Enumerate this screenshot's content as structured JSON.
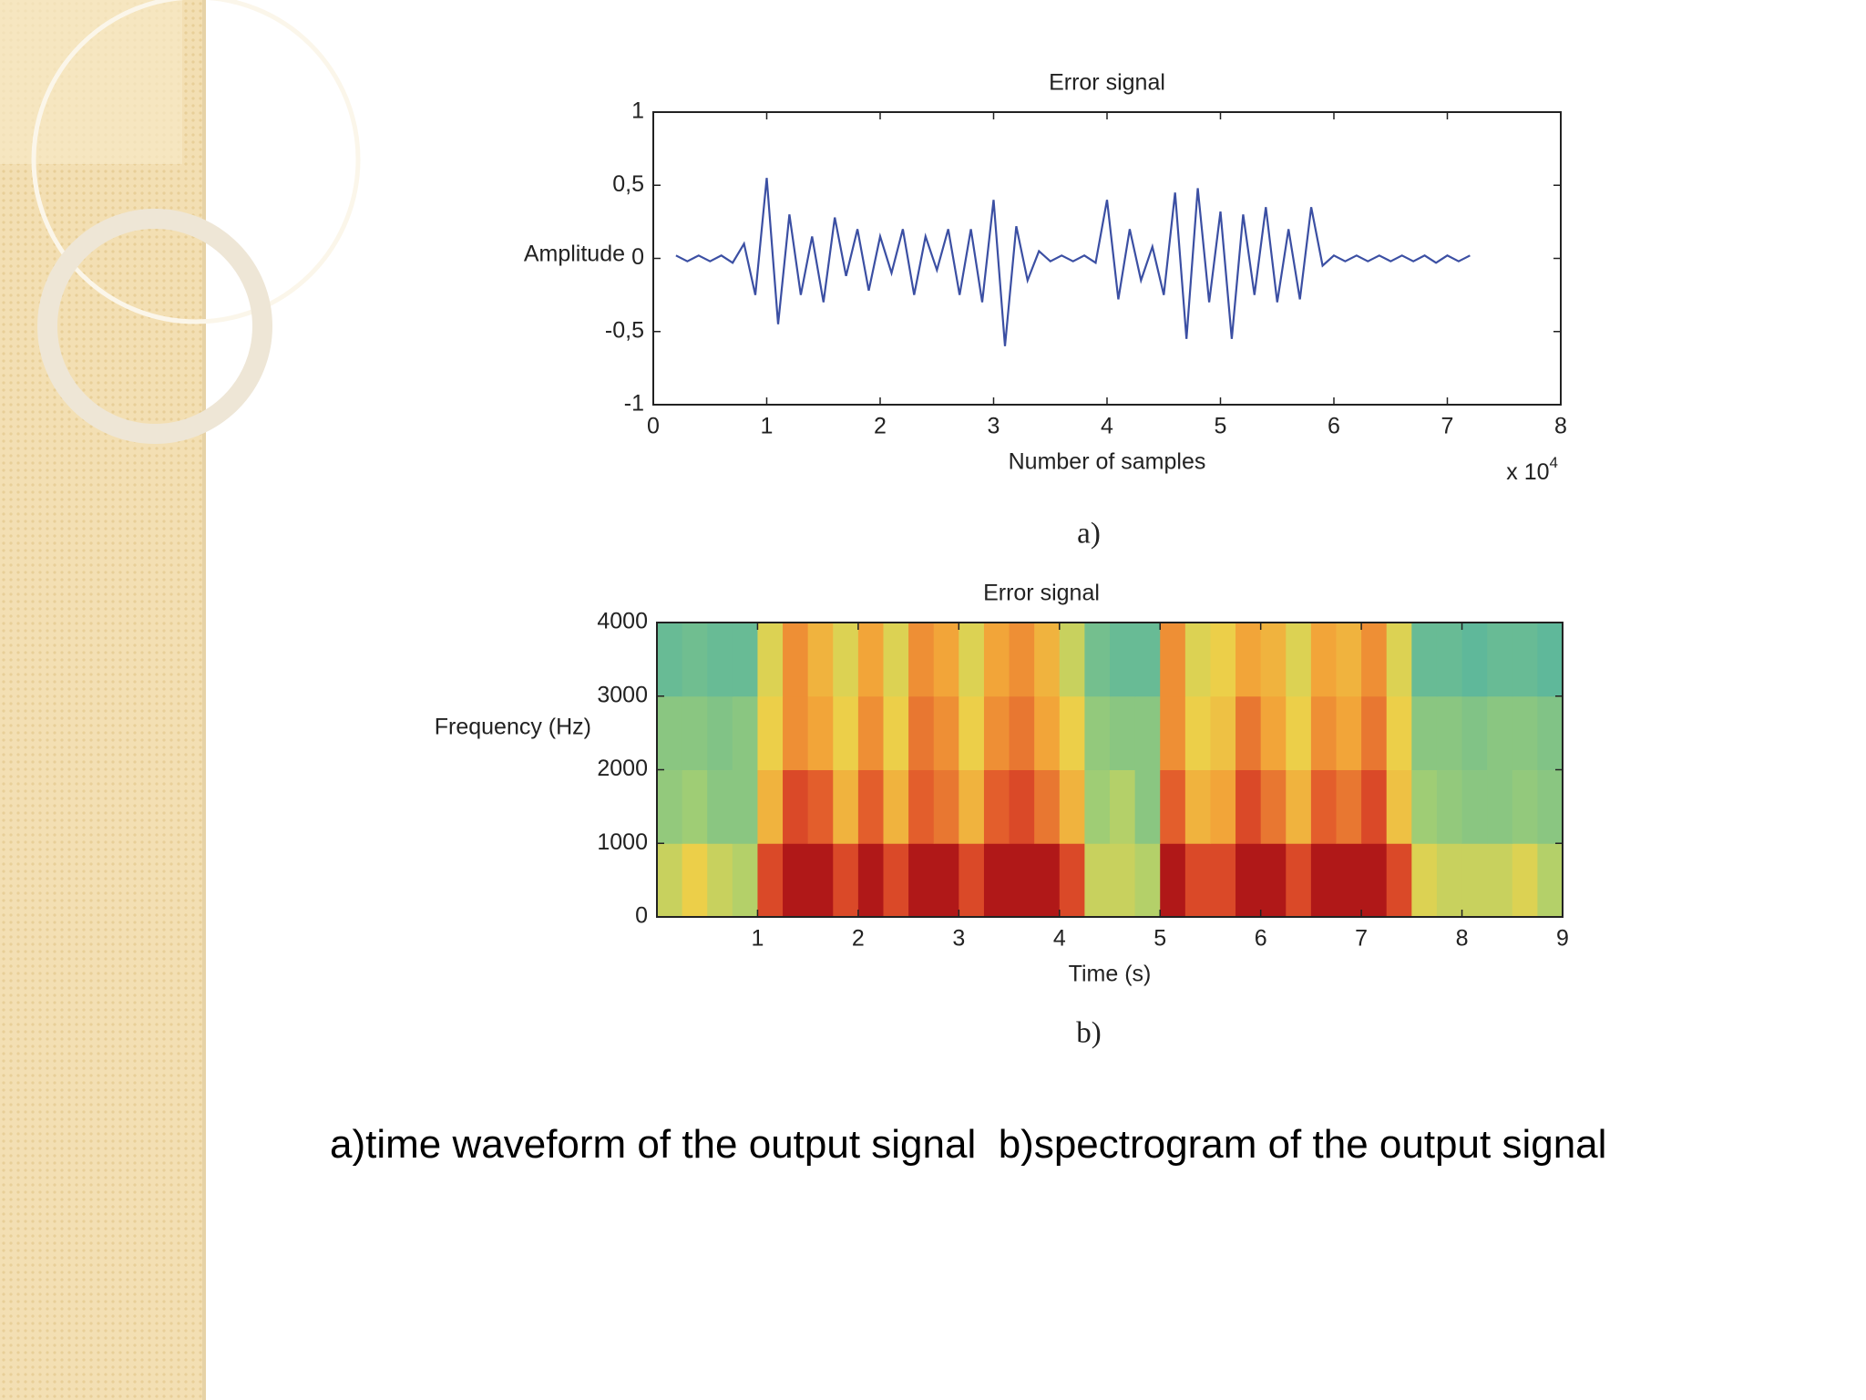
{
  "chart_data": [
    {
      "type": "line",
      "title": "Error signal",
      "y_label": "Amplitude",
      "x_label": "Number of samples",
      "x_multiplier": "x 10",
      "x_multiplier_exponent": "4",
      "panel_label": "a)",
      "color": "#3b4fa3",
      "xlim": [
        0,
        8
      ],
      "xticks": [
        0,
        1,
        2,
        3,
        4,
        5,
        6,
        7,
        8
      ],
      "ylim": [
        -1,
        1
      ],
      "yticks": [
        -1,
        {
          "value": -0.5,
          "label": "-0,5"
        },
        0,
        {
          "value": 0.5,
          "label": "0,5"
        },
        1
      ],
      "x": [
        0.2,
        0.3,
        0.4,
        0.5,
        0.6,
        0.7,
        0.8,
        0.9,
        1.0,
        1.1,
        1.2,
        1.3,
        1.4,
        1.5,
        1.6,
        1.7,
        1.8,
        1.9,
        2.0,
        2.1,
        2.2,
        2.3,
        2.4,
        2.5,
        2.6,
        2.7,
        2.8,
        2.9,
        3.0,
        3.1,
        3.2,
        3.3,
        3.4,
        3.5,
        3.6,
        3.7,
        3.8,
        3.9,
        4.0,
        4.1,
        4.2,
        4.3,
        4.4,
        4.5,
        4.6,
        4.7,
        4.8,
        4.9,
        5.0,
        5.1,
        5.2,
        5.3,
        5.4,
        5.5,
        5.6,
        5.7,
        5.8,
        5.9,
        6.0,
        6.1,
        6.2,
        6.3,
        6.4,
        6.5,
        6.6,
        6.7,
        6.8,
        6.9,
        7.0,
        7.1,
        7.2
      ],
      "values": [
        0.02,
        -0.02,
        0.02,
        -0.02,
        0.02,
        -0.03,
        0.1,
        -0.25,
        0.55,
        -0.45,
        0.3,
        -0.25,
        0.15,
        -0.3,
        0.28,
        -0.12,
        0.2,
        -0.22,
        0.15,
        -0.1,
        0.2,
        -0.25,
        0.15,
        -0.08,
        0.2,
        -0.25,
        0.2,
        -0.3,
        0.4,
        -0.6,
        0.22,
        -0.15,
        0.05,
        -0.02,
        0.02,
        -0.02,
        0.02,
        -0.03,
        0.4,
        -0.28,
        0.2,
        -0.15,
        0.08,
        -0.25,
        0.45,
        -0.55,
        0.48,
        -0.3,
        0.32,
        -0.55,
        0.3,
        -0.25,
        0.35,
        -0.3,
        0.2,
        -0.28,
        0.35,
        -0.05,
        0.02,
        -0.02,
        0.02,
        -0.02,
        0.02,
        -0.02,
        0.02,
        -0.02,
        0.02,
        -0.03,
        0.02,
        -0.02,
        0.02
      ]
    },
    {
      "type": "heatmap",
      "title": "Error signal",
      "y_label": "Frequency (Hz)",
      "x_label": "Time (s)",
      "panel_label": "b)",
      "colorscale": [
        "#5fb89a",
        "#a8d070",
        "#ecd24a",
        "#f2a238",
        "#e0502a",
        "#b01818"
      ],
      "xlim": [
        0,
        9
      ],
      "xticks": [
        1,
        2,
        3,
        4,
        5,
        6,
        7,
        8,
        9
      ],
      "ylim": [
        0,
        4000
      ],
      "yticks": [
        0,
        1000,
        2000,
        3000,
        4000
      ],
      "x": [
        0,
        0.25,
        0.5,
        0.75,
        1,
        1.25,
        1.5,
        1.75,
        2,
        2.25,
        2.5,
        2.75,
        3,
        3.25,
        3.5,
        3.75,
        4,
        4.25,
        4.5,
        4.75,
        5,
        5.25,
        5.5,
        5.75,
        6,
        6.25,
        6.5,
        6.75,
        7,
        7.25,
        7.5,
        7.75,
        8,
        8.25,
        8.5,
        8.75
      ],
      "y": [
        0,
        1000,
        2000,
        3000
      ],
      "z": [
        [
          0.35,
          0.45,
          0.35,
          0.3,
          0.8,
          0.95,
          0.95,
          0.8,
          0.95,
          0.8,
          0.95,
          0.95,
          0.8,
          0.95,
          0.95,
          0.95,
          0.8,
          0.35,
          0.35,
          0.3,
          0.95,
          0.8,
          0.8,
          0.95,
          0.95,
          0.8,
          0.95,
          0.95,
          0.95,
          0.8,
          0.4,
          0.35,
          0.35,
          0.35,
          0.4,
          0.3
        ],
        [
          0.22,
          0.25,
          0.2,
          0.2,
          0.55,
          0.8,
          0.75,
          0.55,
          0.75,
          0.55,
          0.75,
          0.7,
          0.55,
          0.75,
          0.8,
          0.7,
          0.55,
          0.25,
          0.3,
          0.2,
          0.75,
          0.55,
          0.6,
          0.8,
          0.7,
          0.55,
          0.75,
          0.7,
          0.8,
          0.5,
          0.25,
          0.22,
          0.2,
          0.2,
          0.22,
          0.2
        ],
        [
          0.2,
          0.2,
          0.18,
          0.2,
          0.45,
          0.65,
          0.6,
          0.45,
          0.65,
          0.45,
          0.7,
          0.65,
          0.45,
          0.65,
          0.7,
          0.6,
          0.45,
          0.22,
          0.2,
          0.2,
          0.65,
          0.45,
          0.5,
          0.7,
          0.6,
          0.45,
          0.65,
          0.6,
          0.7,
          0.45,
          0.2,
          0.2,
          0.18,
          0.2,
          0.2,
          0.18
        ],
        [
          0.12,
          0.14,
          0.12,
          0.12,
          0.4,
          0.65,
          0.55,
          0.4,
          0.6,
          0.4,
          0.65,
          0.6,
          0.4,
          0.6,
          0.65,
          0.55,
          0.35,
          0.15,
          0.12,
          0.12,
          0.65,
          0.4,
          0.45,
          0.6,
          0.55,
          0.4,
          0.6,
          0.55,
          0.65,
          0.4,
          0.12,
          0.12,
          0.1,
          0.12,
          0.12,
          0.1
        ]
      ]
    }
  ],
  "caption": "a)time waveform of the output signal  b)spectrogram of the output signal"
}
